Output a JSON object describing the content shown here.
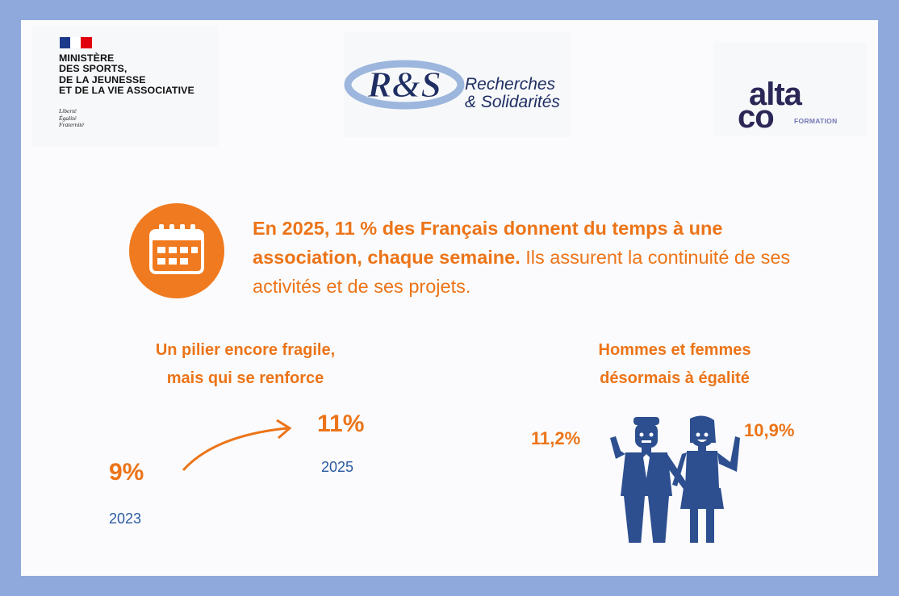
{
  "logos": {
    "ministry": {
      "lines": [
        "MINISTÈRE",
        "DES SPORTS,",
        "DE LA JEUNESSE",
        "ET DE LA VIE ASSOCIATIVE"
      ],
      "motto": [
        "Liberté",
        "Égalité",
        "Fraternité"
      ]
    },
    "rs": {
      "monogram": "R&S",
      "line1": "Recherches",
      "line2": "& Solidarités"
    },
    "alta": {
      "top": "alta",
      "bottom": "co",
      "tagline": "FORMATION"
    }
  },
  "headline": {
    "bold": "En 2025, 11 % des Français donnent du temps à une association, chaque semaine.",
    "regular": " Ils assurent la continuité de ses activités et de ses projets."
  },
  "left_section": {
    "title_line1": "Un pilier encore fragile,",
    "title_line2": "mais qui se renforce",
    "start": {
      "value": "9%",
      "year": "2023"
    },
    "end": {
      "value": "11%",
      "year": "2025"
    }
  },
  "right_section": {
    "title_line1": "Hommes et femmes",
    "title_line2": "désormais à égalité",
    "men_value": "11,2%",
    "women_value": "10,9%"
  },
  "colors": {
    "accent": "#ec7418",
    "navy": "#2b5ba3",
    "frame": "#8fa9dc"
  },
  "icons": [
    "calendar-icon",
    "man-icon",
    "woman-icon",
    "arrow-icon"
  ]
}
